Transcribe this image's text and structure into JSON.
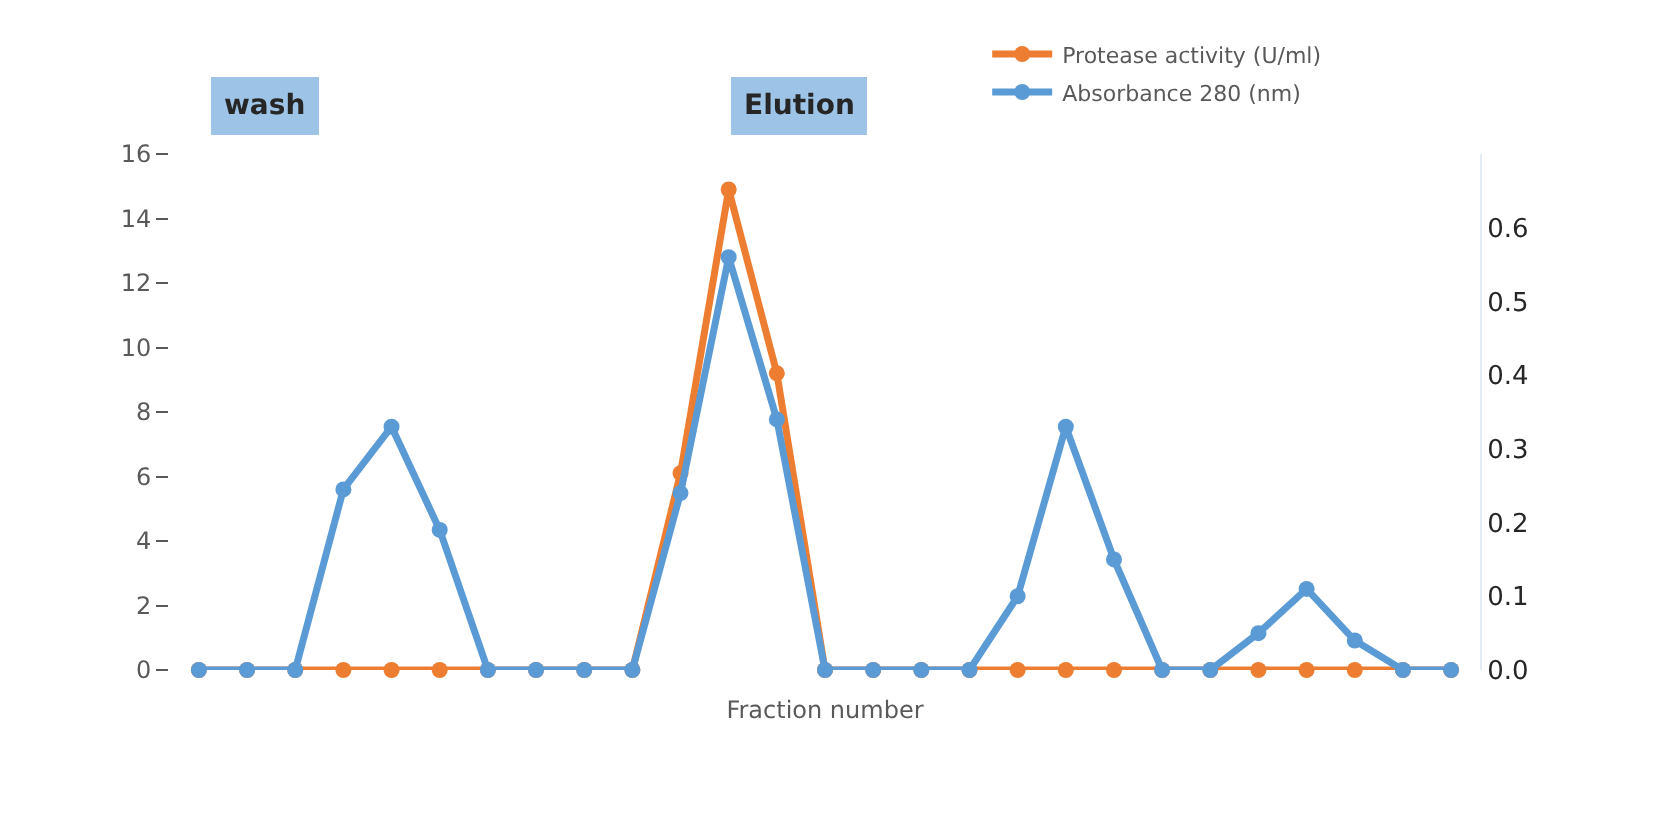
{
  "chart_data": {
    "type": "line",
    "xlabel": "Fraction number",
    "categories": [
      null,
      null,
      null,
      null,
      null,
      null,
      null,
      null,
      null,
      null,
      null,
      null,
      null,
      null,
      null,
      null,
      null,
      null,
      null,
      null,
      null,
      null,
      null,
      null,
      null,
      null,
      null
    ],
    "series": [
      {
        "name": "Protease activity (U/ml)",
        "color": "#ed7d31",
        "values": [
          0,
          0,
          0,
          0,
          0,
          0,
          0,
          0,
          0,
          0,
          6.1,
          14.9,
          9.2,
          0,
          0,
          0,
          0,
          0,
          0,
          0,
          0,
          0,
          0,
          0,
          0,
          0,
          0
        ]
      },
      {
        "name": "Absorbance 280 (nm)",
        "color": "#5b9bd5",
        "axis": "y2",
        "values": [
          0,
          0,
          0,
          0.245,
          0.33,
          0.19,
          0,
          0,
          0,
          0,
          0.24,
          0.56,
          0.34,
          0,
          0,
          0,
          0,
          0.1,
          0.33,
          0.15,
          0,
          0,
          0.05,
          0.11,
          0.04,
          0,
          0
        ]
      }
    ],
    "ylim": [
      0,
      16
    ],
    "yticks": [
      0,
      2,
      4,
      6,
      8,
      10,
      12,
      14,
      16
    ],
    "y2lim": [
      0,
      0.7
    ],
    "y2ticks": [
      {
        "value": 0,
        "label": "0.0"
      },
      0.1,
      0.2,
      0.3,
      0.4,
      0.5,
      0.6
    ],
    "annotations": [
      "wash",
      "Elution"
    ],
    "legend": "top right",
    "marker": "circle",
    "line_style": "solid"
  }
}
